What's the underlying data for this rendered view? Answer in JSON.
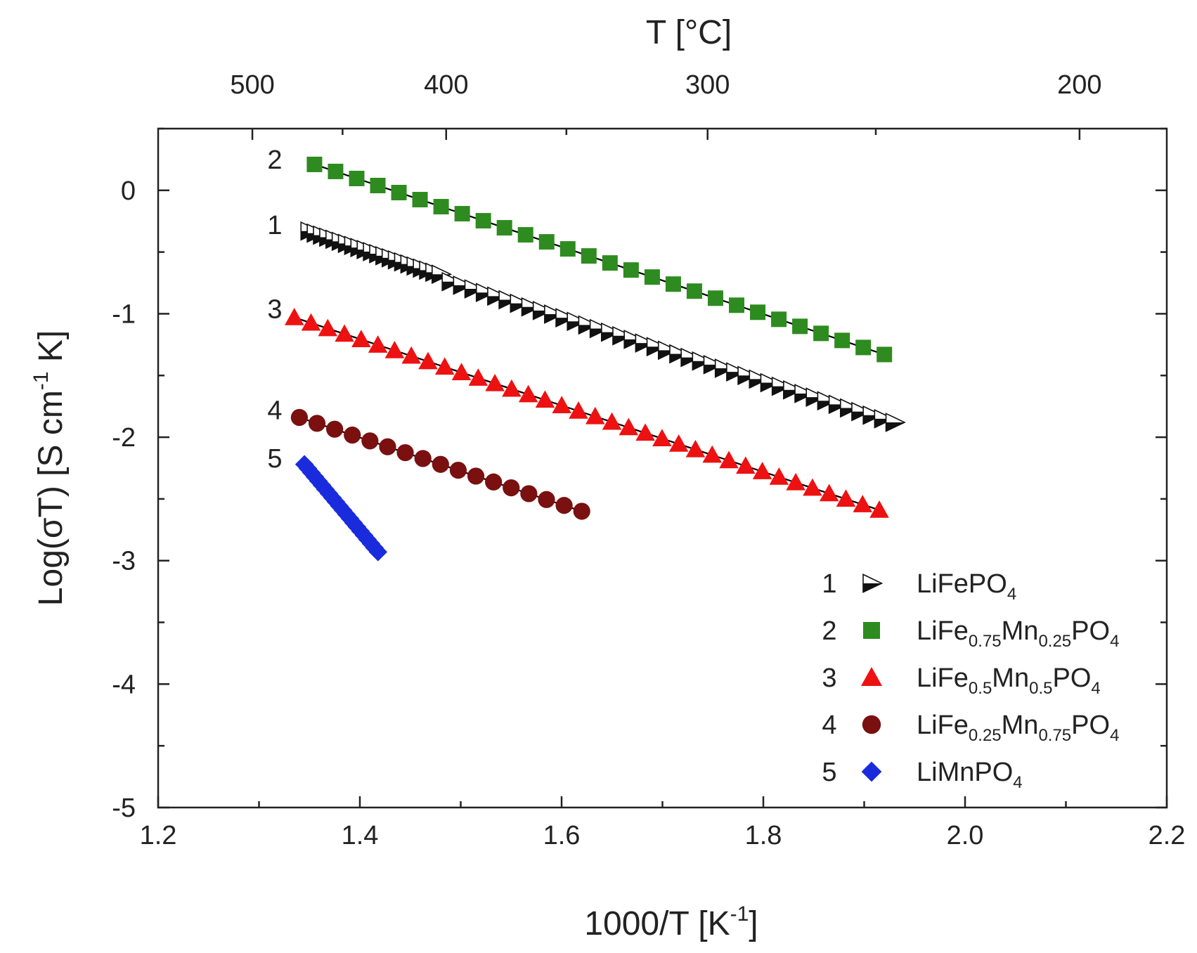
{
  "chart_data": {
    "type": "scatter",
    "xlabel_main": "1000/T [K",
    "xlabel_sup": "-1",
    "xlabel_end": "]",
    "top_axis_title": "T [°C]",
    "ylabel_main": "Log(σT) [S cm",
    "ylabel_sup": "-1",
    "ylabel_end": " K]",
    "xlim": [
      1.2,
      2.2
    ],
    "ylim": [
      -5,
      0.5
    ],
    "x_ticks": [
      1.2,
      1.4,
      1.6,
      1.8,
      2.0,
      2.2
    ],
    "x_tick_labels": [
      "1.2",
      "1.4",
      "1.6",
      "1.8",
      "2.0",
      "2.2"
    ],
    "y_ticks": [
      -5,
      -4,
      -3,
      -2,
      -1,
      0
    ],
    "y_tick_labels": [
      "-5",
      "-4",
      "-3",
      "-2",
      "-1",
      "0"
    ],
    "top_ticks_celsius": [
      500,
      400,
      300,
      200
    ],
    "top_tick_labels": [
      "500",
      "400",
      "300",
      "200"
    ],
    "legend_position": "bottom-right",
    "series": [
      {
        "id": 1,
        "num": "1",
        "name_parts": [
          [
            "LiFePO",
            ""
          ],
          [
            "4",
            "sub"
          ]
        ],
        "marker": "triangle-right",
        "color": "#111111",
        "open_color": "#ffffff",
        "line_label": "1",
        "segments": [
          {
            "x0": 1.35,
            "y0": -0.33,
            "x1": 1.48,
            "y1": -0.68,
            "n": 22
          },
          {
            "x0": 1.49,
            "y0": -0.74,
            "x1": 1.93,
            "y1": -1.88,
            "n": 40
          }
        ],
        "fit": [
          [
            1.35,
            -0.33
          ],
          [
            1.48,
            -0.68
          ],
          [
            1.49,
            -0.74
          ],
          [
            1.93,
            -1.88
          ]
        ]
      },
      {
        "id": 2,
        "num": "2",
        "name_parts": [
          [
            "LiFe",
            ""
          ],
          [
            "0.75",
            "sub"
          ],
          [
            "Mn",
            ""
          ],
          [
            "0.25",
            "sub"
          ],
          [
            "PO",
            ""
          ],
          [
            "4",
            "sub"
          ]
        ],
        "marker": "square",
        "color": "#2e8b1f",
        "line_label": "2",
        "x_range": [
          1.355,
          1.92
        ],
        "y_range": [
          0.21,
          -1.33
        ],
        "n": 28,
        "fit": [
          [
            1.355,
            0.21
          ],
          [
            1.92,
            -1.33
          ]
        ]
      },
      {
        "id": 3,
        "num": "3",
        "name_parts": [
          [
            "LiFe",
            ""
          ],
          [
            "0.5",
            "sub"
          ],
          [
            "Mn",
            ""
          ],
          [
            "0.5",
            "sub"
          ],
          [
            "PO",
            ""
          ],
          [
            "4",
            "sub"
          ]
        ],
        "marker": "triangle-up",
        "color": "#ee1111",
        "line_label": "3",
        "x_range": [
          1.335,
          1.915
        ],
        "y_range": [
          -1.03,
          -2.59
        ],
        "n": 36,
        "fit": [
          [
            1.335,
            -1.03
          ],
          [
            1.915,
            -2.59
          ]
        ]
      },
      {
        "id": 4,
        "num": "4",
        "name_parts": [
          [
            "LiFe",
            ""
          ],
          [
            "0.25",
            "sub"
          ],
          [
            "Mn",
            ""
          ],
          [
            "0.75",
            "sub"
          ],
          [
            "PO",
            ""
          ],
          [
            "4",
            "sub"
          ]
        ],
        "marker": "circle",
        "color": "#7a1010",
        "line_label": "4",
        "x_range": [
          1.34,
          1.62
        ],
        "y_range": [
          -1.84,
          -2.6
        ],
        "n": 17,
        "fit": [
          [
            1.34,
            -1.84
          ],
          [
            1.62,
            -2.6
          ]
        ]
      },
      {
        "id": 5,
        "num": "5",
        "name_parts": [
          [
            "LiMnPO",
            ""
          ],
          [
            "4",
            "sub"
          ]
        ],
        "marker": "diamond",
        "color": "#1a2bdd",
        "line_label": "5",
        "x_range": [
          1.345,
          1.418
        ],
        "y_range": [
          -2.22,
          -2.93
        ],
        "n": 22,
        "fit": [
          [
            1.345,
            -2.22
          ],
          [
            1.418,
            -2.93
          ]
        ]
      }
    ]
  }
}
